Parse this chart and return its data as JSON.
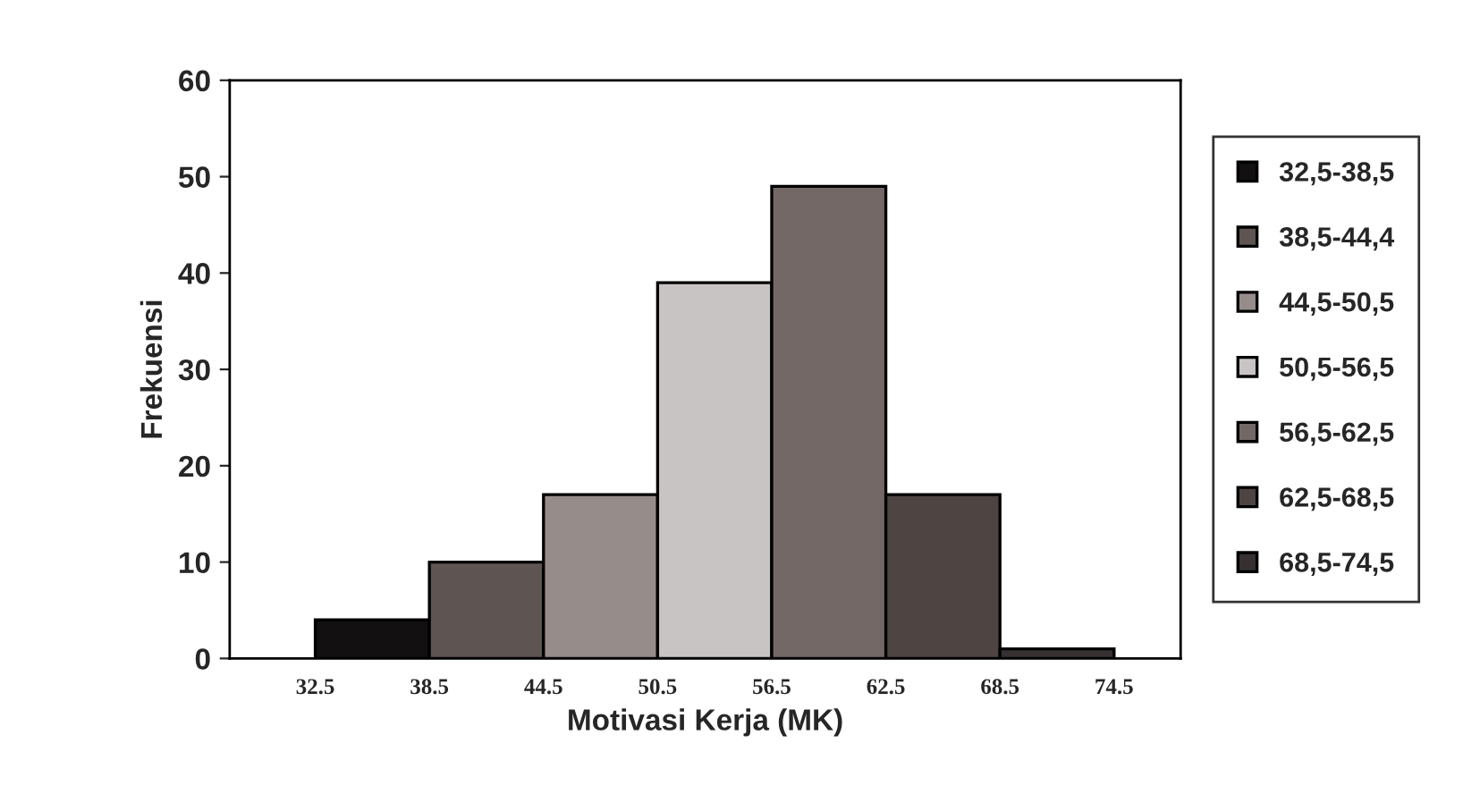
{
  "chart_data": {
    "type": "histogram",
    "xlabel": "Motivasi Kerja (MK)",
    "ylabel": "Frekuensi",
    "bins": [
      32.5,
      38.5,
      44.5,
      50.5,
      56.5,
      62.5,
      68.5,
      74.5
    ],
    "series": [
      {
        "name": "32,5-38,5",
        "color": "#121010",
        "values": [
          4,
          null,
          null,
          null,
          null,
          null,
          null
        ]
      },
      {
        "name": "38,5-44,4",
        "color": "#5e5452",
        "values": [
          null,
          10,
          null,
          null,
          null,
          null,
          null
        ]
      },
      {
        "name": "44,5-50,5",
        "color": "#968d8b",
        "values": [
          null,
          null,
          17,
          null,
          null,
          null,
          null
        ]
      },
      {
        "name": "50,5-56,5",
        "color": "#c8c4c4",
        "values": [
          null,
          null,
          null,
          39,
          null,
          null,
          null
        ]
      },
      {
        "name": "56,5-62,5",
        "color": "#746866",
        "values": [
          null,
          null,
          null,
          null,
          49,
          null,
          null
        ]
      },
      {
        "name": "62,5-68,5",
        "color": "#4e4442",
        "values": [
          null,
          null,
          null,
          null,
          null,
          17,
          null
        ]
      },
      {
        "name": "68,5-74,5",
        "color": "#363030",
        "values": [
          null,
          null,
          null,
          null,
          null,
          null,
          1
        ]
      }
    ],
    "xlim": [
      28,
      78
    ],
    "xticks": [
      32.5,
      38.5,
      44.5,
      50.5,
      56.5,
      62.5,
      68.5,
      74.5
    ],
    "ylim": [
      0,
      60
    ],
    "yticks": [
      0,
      10,
      20,
      30,
      40,
      50,
      60
    ],
    "grid": false,
    "legend": "right"
  }
}
